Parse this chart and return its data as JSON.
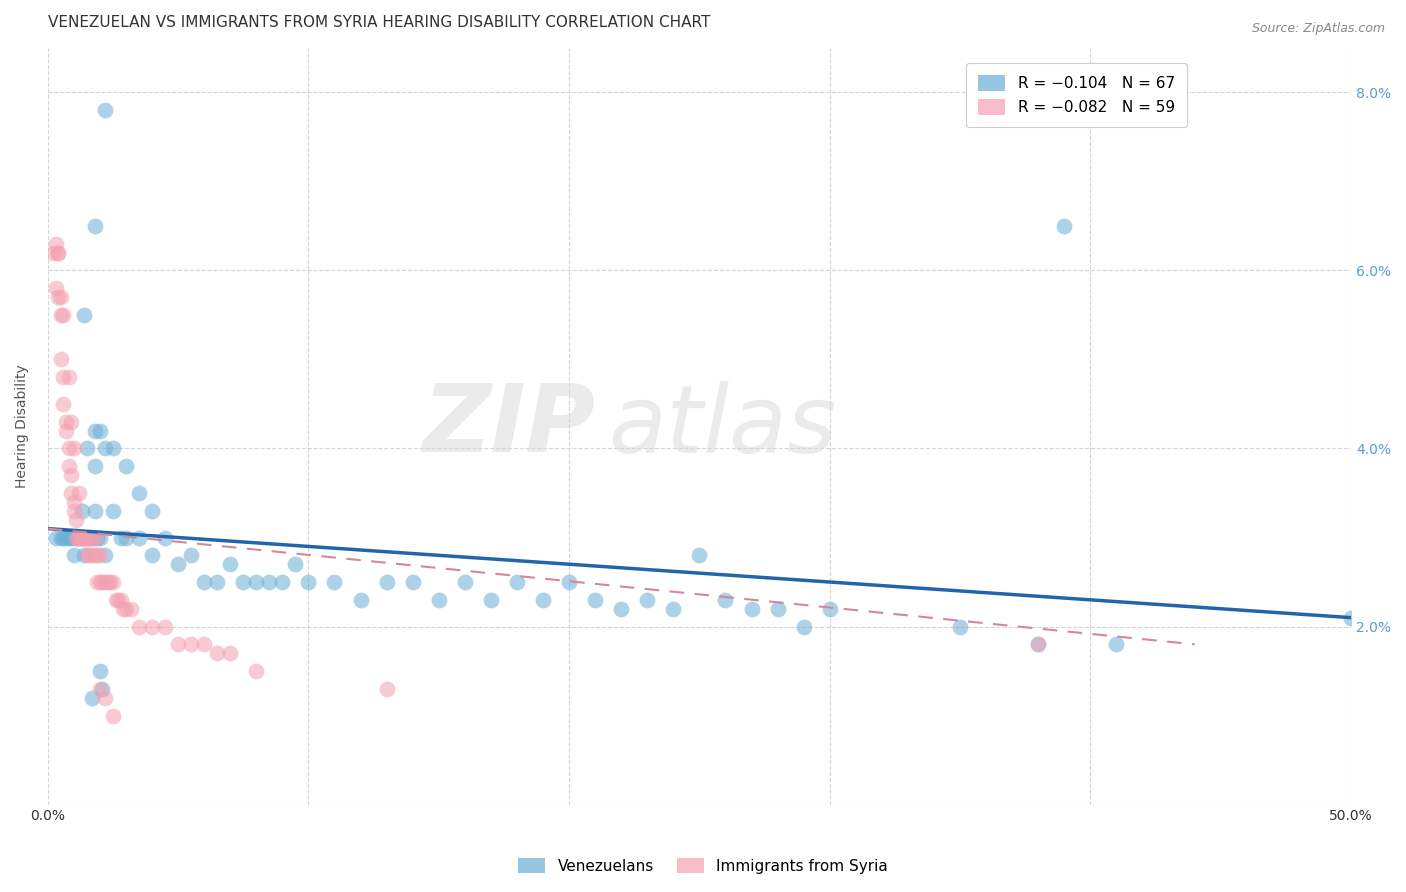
{
  "title": "VENEZUELAN VS IMMIGRANTS FROM SYRIA HEARING DISABILITY CORRELATION CHART",
  "source": "Source: ZipAtlas.com",
  "ylabel": "Hearing Disability",
  "xlim": [
    0.0,
    0.5
  ],
  "ylim": [
    0.0,
    0.085
  ],
  "legend_blue_r": "R = −0.104",
  "legend_blue_n": "N = 67",
  "legend_pink_r": "R = −0.082",
  "legend_pink_n": "N = 59",
  "blue_color": "#6baed6",
  "pink_color": "#f4a0b0",
  "trendline_blue_color": "#2166ac",
  "trendline_pink_color": "#d4869a",
  "watermark_zip": "ZIP",
  "watermark_atlas": "atlas",
  "blue_x": [
    0.003,
    0.005,
    0.006,
    0.007,
    0.008,
    0.009,
    0.01,
    0.011,
    0.012,
    0.013,
    0.014,
    0.015,
    0.016,
    0.017,
    0.018,
    0.019,
    0.02,
    0.022,
    0.025,
    0.028,
    0.03,
    0.035,
    0.04,
    0.045,
    0.05,
    0.055,
    0.06,
    0.065,
    0.07,
    0.075,
    0.08,
    0.085,
    0.09,
    0.095,
    0.1,
    0.11,
    0.12,
    0.13,
    0.14,
    0.15,
    0.16,
    0.17,
    0.18,
    0.19,
    0.2,
    0.21,
    0.22,
    0.23,
    0.24,
    0.25,
    0.26,
    0.27,
    0.28,
    0.29,
    0.3,
    0.35,
    0.38,
    0.41,
    0.018,
    0.022,
    0.02,
    0.025,
    0.03,
    0.035,
    0.04,
    0.5
  ],
  "blue_y": [
    0.03,
    0.03,
    0.03,
    0.03,
    0.03,
    0.03,
    0.028,
    0.03,
    0.03,
    0.033,
    0.028,
    0.03,
    0.03,
    0.03,
    0.033,
    0.03,
    0.03,
    0.028,
    0.033,
    0.03,
    0.03,
    0.03,
    0.028,
    0.03,
    0.027,
    0.028,
    0.025,
    0.025,
    0.027,
    0.025,
    0.025,
    0.025,
    0.025,
    0.027,
    0.025,
    0.025,
    0.023,
    0.025,
    0.025,
    0.023,
    0.025,
    0.023,
    0.025,
    0.023,
    0.025,
    0.023,
    0.022,
    0.023,
    0.022,
    0.028,
    0.023,
    0.022,
    0.022,
    0.02,
    0.022,
    0.02,
    0.018,
    0.018,
    0.038,
    0.04,
    0.042,
    0.04,
    0.038,
    0.035,
    0.033,
    0.021
  ],
  "blue_outliers_x": [
    0.022,
    0.018,
    0.014,
    0.39,
    0.018,
    0.015,
    0.02,
    0.021,
    0.017
  ],
  "blue_outliers_y": [
    0.078,
    0.065,
    0.055,
    0.065,
    0.042,
    0.04,
    0.015,
    0.013,
    0.012
  ],
  "pink_x": [
    0.002,
    0.003,
    0.003,
    0.004,
    0.004,
    0.005,
    0.005,
    0.006,
    0.006,
    0.007,
    0.007,
    0.008,
    0.008,
    0.009,
    0.009,
    0.01,
    0.01,
    0.011,
    0.011,
    0.012,
    0.012,
    0.013,
    0.013,
    0.014,
    0.014,
    0.015,
    0.015,
    0.016,
    0.016,
    0.017,
    0.017,
    0.018,
    0.018,
    0.019,
    0.019,
    0.02,
    0.02,
    0.021,
    0.022,
    0.023,
    0.024,
    0.025,
    0.026,
    0.027,
    0.028,
    0.029,
    0.03,
    0.032,
    0.035,
    0.04,
    0.045,
    0.05,
    0.055,
    0.06,
    0.065,
    0.07,
    0.08,
    0.13,
    0.38
  ],
  "pink_y": [
    0.062,
    0.063,
    0.058,
    0.062,
    0.057,
    0.055,
    0.05,
    0.048,
    0.045,
    0.043,
    0.042,
    0.04,
    0.038,
    0.037,
    0.035,
    0.034,
    0.033,
    0.032,
    0.03,
    0.03,
    0.03,
    0.03,
    0.03,
    0.03,
    0.03,
    0.028,
    0.03,
    0.03,
    0.028,
    0.03,
    0.028,
    0.03,
    0.028,
    0.028,
    0.025,
    0.028,
    0.025,
    0.025,
    0.025,
    0.025,
    0.025,
    0.025,
    0.023,
    0.023,
    0.023,
    0.022,
    0.022,
    0.022,
    0.02,
    0.02,
    0.02,
    0.018,
    0.018,
    0.018,
    0.017,
    0.017,
    0.015,
    0.013,
    0.018
  ],
  "pink_outliers_x": [
    0.004,
    0.005,
    0.006,
    0.008,
    0.009,
    0.01,
    0.012,
    0.014,
    0.02,
    0.022,
    0.025
  ],
  "pink_outliers_y": [
    0.062,
    0.057,
    0.055,
    0.048,
    0.043,
    0.04,
    0.035,
    0.03,
    0.013,
    0.012,
    0.01
  ],
  "blue_trend_x": [
    0.0,
    0.5
  ],
  "blue_trend_y": [
    0.031,
    0.021
  ],
  "pink_trend_x": [
    0.0,
    0.44
  ],
  "pink_trend_y": [
    0.031,
    0.018
  ],
  "background_color": "#ffffff",
  "grid_color": "#d0d0d0",
  "right_axis_color": "#5b9bd5",
  "title_fontsize": 11,
  "axis_label_fontsize": 10,
  "tick_fontsize": 10
}
